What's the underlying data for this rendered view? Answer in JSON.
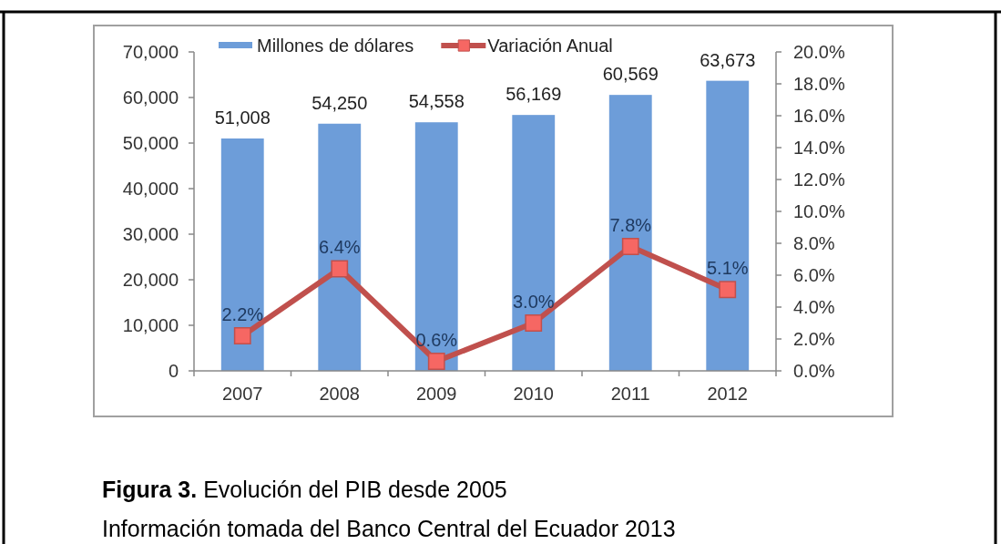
{
  "chart_data": {
    "type": "bar",
    "title": "Figura 3. Evolución del PIB desde 2005",
    "annotations": [
      "Información tomada del Banco Central del Ecuador 2013"
    ],
    "categories": [
      "2007",
      "2008",
      "2009",
      "2010",
      "2011",
      "2012"
    ],
    "series": [
      {
        "name": "Millones de dólares",
        "color": "#6d9dd9",
        "values": [
          51008,
          54250,
          54558,
          56169,
          60569,
          63673
        ],
        "value_labels": [
          "51,008",
          "54,250",
          "54,558",
          "56,169",
          "60,569",
          "63,673"
        ]
      },
      {
        "name": "Variación Anual",
        "type": "line",
        "axis": "y2",
        "color": "#c0504d",
        "values": [
          2.2,
          6.4,
          0.6,
          3.0,
          7.8,
          5.1
        ],
        "value_labels": [
          "2.2%",
          "6.4%",
          "0.6%",
          "3.0%",
          "7.8%",
          "5.1%"
        ]
      }
    ],
    "ylim": [
      0,
      70000
    ],
    "yticks": [
      0,
      {
        "value": 10000,
        "label": "10,000"
      },
      {
        "value": 20000,
        "label": "20,000"
      },
      {
        "value": 30000,
        "label": "30,000"
      },
      {
        "value": 40000,
        "label": "40,000"
      },
      {
        "value": 50000,
        "label": "50,000"
      },
      {
        "value": 60000,
        "label": "60,000"
      },
      {
        "value": 70000,
        "label": "70,000"
      }
    ],
    "y2lim": [
      0,
      20
    ],
    "y2ticks": [
      {
        "value": 0,
        "label": "0.0%"
      },
      {
        "value": 2,
        "label": "2.0%"
      },
      {
        "value": 4,
        "label": "4.0%"
      },
      {
        "value": 6,
        "label": "6.0%"
      },
      {
        "value": 8,
        "label": "8.0%"
      },
      {
        "value": 10,
        "label": "10.0%"
      },
      {
        "value": 12,
        "label": "12.0%"
      },
      {
        "value": 14,
        "label": "14.0%"
      },
      {
        "value": 16,
        "label": "16.0%"
      },
      {
        "value": 18,
        "label": "18.0%"
      },
      {
        "value": 20,
        "label": "20.0%"
      }
    ],
    "legend": "top",
    "marker": "square"
  }
}
